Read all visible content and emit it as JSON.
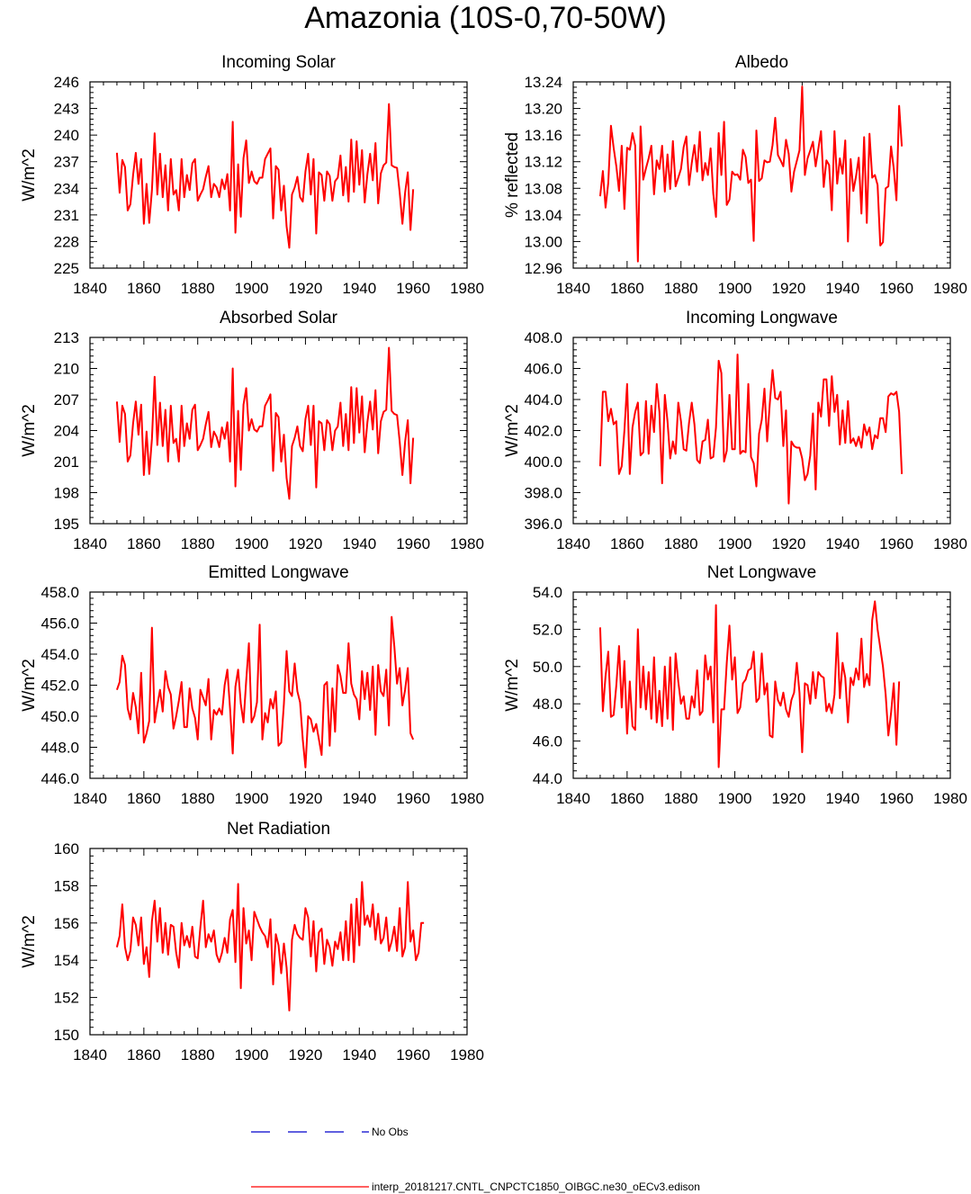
{
  "title": "Amazonia (10S-0,70-50W)",
  "chart_data": [
    {
      "type": "line",
      "title": "Incoming Solar",
      "ylabel": "W/m^2",
      "xlim": [
        1840,
        1980
      ],
      "ylim": [
        225,
        246
      ],
      "xticks": [
        1840,
        1860,
        1880,
        1900,
        1920,
        1940,
        1960,
        1980
      ],
      "xtick_labels": [
        "1840",
        "1860",
        "1880",
        "1900",
        "1920",
        "1940",
        "1960",
        "1980"
      ],
      "yticks": [
        225,
        228,
        231,
        234,
        237,
        240,
        243,
        246
      ],
      "ytick_labels": [
        "225",
        "228",
        "231",
        "234",
        "237",
        "240",
        "243",
        "246"
      ],
      "x_start": 1850,
      "values": [
        238.0,
        233.5,
        237.2,
        236.4,
        231.5,
        232.2,
        235.5,
        238.0,
        234.5,
        237.3,
        230.0,
        234.5,
        230.1,
        233.8,
        240.2,
        233.3,
        237.9,
        233.0,
        236.6,
        231.5,
        237.3,
        233.3,
        233.8,
        231.5,
        237.3,
        233.0,
        235.5,
        233.8,
        236.8,
        237.3,
        232.6,
        233.3,
        233.9,
        235.3,
        236.5,
        233.0,
        234.5,
        234.1,
        233.0,
        235.0,
        233.9,
        235.6,
        231.5,
        241.5,
        229.0,
        236.7,
        230.8,
        237.4,
        239.4,
        234.6,
        235.9,
        234.8,
        234.5,
        235.2,
        235.2,
        237.3,
        237.9,
        238.5,
        230.6,
        236.5,
        236.1,
        231.5,
        234.3,
        229.7,
        227.3,
        233.3,
        234.1,
        235.3,
        233.0,
        232.5,
        235.9,
        237.9,
        233.3,
        237.3,
        228.9,
        235.8,
        235.5,
        232.6,
        235.9,
        235.4,
        232.6,
        234.8,
        235.2,
        237.7,
        233.2,
        236.4,
        232.5,
        239.5,
        233.6,
        239.3,
        234.4,
        238.3,
        232.4,
        235.6,
        237.9,
        234.9,
        239.1,
        232.3,
        235.7,
        236.6,
        236.9,
        243.5,
        236.6,
        236.4,
        236.3,
        233.5,
        230.0,
        233.5,
        235.8,
        229.3,
        233.9
      ]
    },
    {
      "type": "line",
      "title": "Albedo",
      "ylabel": "% reflected",
      "xlim": [
        1840,
        1980
      ],
      "ylim": [
        12.96,
        13.24
      ],
      "xticks": [
        1840,
        1860,
        1880,
        1900,
        1920,
        1940,
        1960,
        1980
      ],
      "xtick_labels": [
        "1840",
        "1860",
        "1880",
        "1900",
        "1920",
        "1940",
        "1960",
        "1980"
      ],
      "yticks": [
        12.96,
        13.0,
        13.04,
        13.08,
        13.12,
        13.16,
        13.2,
        13.24
      ],
      "ytick_labels": [
        "12.96",
        "13.00",
        "13.04",
        "13.08",
        "13.12",
        "13.16",
        "13.20",
        "13.24"
      ],
      "x_start": 1850,
      "values": [
        13.068,
        13.106,
        13.051,
        13.088,
        13.174,
        13.141,
        13.113,
        13.076,
        13.144,
        13.049,
        13.141,
        13.138,
        13.163,
        13.144,
        12.97,
        13.173,
        13.093,
        13.11,
        13.125,
        13.144,
        13.071,
        13.122,
        13.109,
        13.144,
        13.075,
        13.131,
        13.079,
        13.151,
        13.083,
        13.096,
        13.109,
        13.142,
        13.158,
        13.085,
        13.118,
        13.145,
        13.105,
        13.165,
        13.092,
        13.118,
        13.1,
        13.14,
        13.072,
        13.037,
        13.163,
        13.1,
        13.18,
        13.055,
        13.063,
        13.105,
        13.1,
        13.101,
        13.093,
        13.138,
        13.127,
        13.088,
        13.093,
        13.001,
        13.167,
        13.091,
        13.095,
        13.122,
        13.119,
        13.12,
        13.145,
        13.186,
        13.13,
        13.122,
        13.113,
        13.153,
        13.132,
        13.075,
        13.105,
        13.121,
        13.137,
        13.233,
        13.1,
        13.125,
        13.137,
        13.15,
        13.113,
        13.139,
        13.166,
        13.082,
        13.122,
        13.115,
        13.047,
        13.166,
        13.087,
        13.125,
        13.102,
        13.152,
        13.0,
        13.124,
        13.076,
        13.098,
        13.126,
        13.042,
        13.157,
        13.028,
        13.162,
        13.096,
        13.1,
        13.085,
        12.994,
        12.999,
        13.08,
        13.083,
        13.143,
        13.11,
        13.062,
        13.204,
        13.143
      ]
    },
    {
      "type": "line",
      "title": "Absorbed Solar",
      "ylabel": "W/m^2",
      "xlim": [
        1840,
        1980
      ],
      "ylim": [
        195,
        213
      ],
      "xticks": [
        1840,
        1860,
        1880,
        1900,
        1920,
        1940,
        1960,
        1980
      ],
      "xtick_labels": [
        "1840",
        "1860",
        "1880",
        "1900",
        "1920",
        "1940",
        "1960",
        "1980"
      ],
      "yticks": [
        195,
        198,
        201,
        204,
        207,
        210,
        213
      ],
      "ytick_labels": [
        "195",
        "198",
        "201",
        "204",
        "207",
        "210",
        "213"
      ],
      "x_start": 1850,
      "values": [
        206.8,
        202.9,
        206.4,
        205.6,
        201.0,
        201.6,
        204.7,
        206.8,
        203.6,
        206.5,
        199.7,
        203.9,
        199.8,
        203.2,
        209.2,
        202.6,
        206.7,
        202.5,
        206.0,
        201.0,
        206.4,
        202.8,
        203.2,
        201.0,
        206.4,
        202.5,
        204.7,
        203.2,
        206.0,
        206.5,
        202.1,
        202.6,
        203.2,
        204.6,
        205.8,
        202.4,
        203.9,
        203.4,
        202.4,
        204.3,
        203.2,
        204.8,
        201.0,
        210.0,
        198.6,
        205.9,
        200.2,
        206.5,
        208.1,
        204.0,
        205.1,
        204.1,
        203.9,
        204.4,
        204.4,
        206.4,
        206.9,
        207.5,
        200.1,
        205.7,
        205.3,
        201.0,
        203.6,
        199.4,
        197.4,
        202.5,
        203.3,
        204.4,
        202.5,
        202.0,
        205.1,
        206.4,
        202.6,
        206.4,
        198.5,
        204.9,
        204.7,
        202.1,
        205.0,
        204.6,
        202.1,
        204.0,
        204.4,
        206.7,
        202.5,
        205.6,
        202.1,
        208.2,
        202.8,
        208.1,
        203.8,
        207.3,
        201.9,
        204.8,
        206.8,
        204.1,
        207.9,
        201.8,
        204.9,
        205.8,
        206.0,
        212.0,
        205.9,
        205.6,
        205.5,
        202.9,
        199.7,
        202.9,
        205.0,
        198.9,
        203.3
      ]
    },
    {
      "type": "line",
      "title": "Incoming Longwave",
      "ylabel": "W/m^2",
      "xlim": [
        1840,
        1980
      ],
      "ylim": [
        396,
        408
      ],
      "xticks": [
        1840,
        1860,
        1880,
        1900,
        1920,
        1940,
        1960,
        1980
      ],
      "xtick_labels": [
        "1840",
        "1860",
        "1880",
        "1900",
        "1920",
        "1940",
        "1960",
        "1980"
      ],
      "yticks": [
        396,
        398,
        400,
        402,
        404,
        406,
        408
      ],
      "ytick_labels": [
        "396.0",
        "398.0",
        "400.0",
        "402.0",
        "404.0",
        "406.0",
        "408.0"
      ],
      "x_start": 1850,
      "values": [
        399.7,
        404.5,
        404.5,
        402.6,
        403.4,
        402.4,
        402.6,
        399.2,
        399.7,
        402.0,
        405.0,
        399.2,
        402.2,
        403.2,
        403.8,
        400.4,
        400.6,
        403.9,
        400.5,
        403.6,
        401.9,
        405.0,
        403.2,
        398.6,
        404.3,
        402.6,
        400.2,
        401.3,
        400.5,
        403.8,
        402.6,
        400.8,
        400.7,
        402.5,
        403.8,
        402.4,
        400.1,
        399.9,
        401.3,
        401.4,
        402.7,
        400.2,
        400.3,
        402.2,
        406.5,
        405.7,
        400.0,
        400.7,
        404.3,
        400.8,
        400.8,
        406.9,
        400.5,
        400.7,
        400.6,
        405.0,
        400.3,
        399.9,
        398.4,
        401.8,
        402.7,
        404.7,
        401.3,
        403.8,
        405.9,
        404.1,
        404.0,
        404.5,
        401.0,
        403.3,
        397.3,
        401.3,
        401.0,
        400.9,
        400.9,
        400.2,
        398.8,
        399.2,
        400.4,
        403.1,
        398.2,
        403.8,
        402.9,
        405.3,
        405.3,
        402.3,
        405.5,
        403.2,
        404.3,
        401.1,
        403.3,
        401.2,
        403.9,
        401.2,
        401.5,
        401.0,
        401.6,
        400.9,
        402.4,
        401.7,
        402.2,
        400.8,
        401.7,
        401.5,
        402.8,
        402.8,
        401.9,
        404.2,
        404.4,
        404.3,
        404.5,
        403.2,
        399.2
      ]
    },
    {
      "type": "line",
      "title": "Emitted Longwave",
      "ylabel": "W/m^2",
      "xlim": [
        1840,
        1980
      ],
      "ylim": [
        446,
        458
      ],
      "xticks": [
        1840,
        1860,
        1880,
        1900,
        1920,
        1940,
        1960,
        1980
      ],
      "xtick_labels": [
        "1840",
        "1860",
        "1880",
        "1900",
        "1920",
        "1940",
        "1960",
        "1980"
      ],
      "yticks": [
        446,
        448,
        450,
        452,
        454,
        456,
        458
      ],
      "ytick_labels": [
        "446.0",
        "448.0",
        "450.0",
        "452.0",
        "454.0",
        "456.0",
        "458.0"
      ],
      "x_start": 1850,
      "values": [
        451.7,
        452.2,
        453.9,
        453.3,
        450.5,
        449.8,
        451.5,
        450.6,
        448.9,
        452.8,
        448.3,
        448.9,
        449.7,
        455.7,
        449.6,
        450.7,
        451.7,
        450.3,
        452.9,
        451.9,
        451.4,
        449.2,
        450.0,
        451.0,
        452.2,
        449.3,
        449.3,
        451.8,
        450.5,
        449.9,
        448.5,
        451.7,
        451.2,
        450.7,
        452.4,
        448.5,
        450.4,
        450.1,
        450.5,
        450.1,
        452.0,
        453.0,
        450.5,
        447.6,
        451.9,
        453.0,
        450.8,
        449.6,
        452.3,
        454.7,
        449.6,
        450.0,
        450.9,
        455.9,
        448.5,
        450.2,
        449.6,
        451.1,
        450.5,
        451.6,
        448.1,
        448.3,
        450.8,
        454.2,
        451.6,
        451.3,
        453.4,
        451.6,
        450.9,
        448.5,
        446.7,
        450.0,
        449.8,
        449.0,
        449.5,
        448.5,
        447.5,
        452.0,
        452.2,
        448.1,
        451.8,
        449.0,
        453.3,
        452.6,
        451.5,
        451.5,
        454.7,
        452.1,
        451.4,
        451.1,
        449.8,
        452.9,
        451.1,
        452.8,
        450.4,
        453.2,
        448.8,
        453.3,
        451.6,
        451.3,
        453.0,
        449.4,
        456.4,
        454.5,
        452.1,
        453.1,
        450.7,
        451.7,
        453.1,
        448.9,
        448.5
      ]
    },
    {
      "type": "line",
      "title": "Net Longwave",
      "ylabel": "W/m^2",
      "xlim": [
        1840,
        1980
      ],
      "ylim": [
        44,
        54
      ],
      "xticks": [
        1840,
        1860,
        1880,
        1900,
        1920,
        1940,
        1960,
        1980
      ],
      "xtick_labels": [
        "1840",
        "1860",
        "1880",
        "1900",
        "1920",
        "1940",
        "1960",
        "1980"
      ],
      "yticks": [
        44,
        46,
        48,
        50,
        52,
        54
      ],
      "ytick_labels": [
        "44.0",
        "46.0",
        "48.0",
        "50.0",
        "52.0",
        "54.0"
      ],
      "x_start": 1850,
      "values": [
        52.1,
        47.6,
        49.5,
        50.8,
        47.3,
        47.4,
        49.0,
        51.1,
        47.8,
        50.3,
        46.4,
        49.2,
        46.8,
        46.6,
        52.0,
        47.8,
        50.0,
        47.7,
        49.7,
        47.2,
        50.5,
        47.0,
        48.7,
        46.8,
        50.0,
        47.2,
        50.5,
        46.6,
        50.7,
        49.2,
        48.0,
        48.4,
        47.2,
        47.2,
        48.4,
        47.8,
        49.8,
        47.4,
        47.6,
        50.6,
        49.3,
        50.0,
        47.0,
        53.3,
        44.6,
        47.7,
        47.7,
        50.2,
        52.2,
        49.3,
        50.5,
        47.5,
        47.8,
        49.1,
        49.3,
        49.8,
        49.9,
        50.8,
        48.1,
        48.3,
        50.7,
        48.5,
        49.1,
        46.3,
        46.2,
        49.2,
        48.2,
        47.9,
        48.6,
        47.7,
        47.3,
        48.2,
        48.6,
        50.2,
        48.6,
        45.4,
        49.1,
        49.0,
        48.0,
        49.7,
        48.3,
        49.7,
        49.5,
        49.4,
        47.6,
        48.0,
        47.5,
        48.5,
        51.8,
        48.3,
        50.2,
        49.4,
        47.0,
        49.4,
        49.0,
        49.9,
        49.3,
        51.5,
        48.9,
        49.6,
        49.0,
        52.5,
        53.5,
        52.0,
        51.0,
        50.0,
        48.5,
        46.3,
        47.5,
        49.1,
        45.8,
        49.2
      ]
    },
    {
      "type": "line",
      "title": "Net Radiation",
      "ylabel": "W/m^2",
      "xlim": [
        1840,
        1980
      ],
      "ylim": [
        150,
        160
      ],
      "xticks": [
        1840,
        1860,
        1880,
        1900,
        1920,
        1940,
        1960,
        1980
      ],
      "xtick_labels": [
        "1840",
        "1860",
        "1880",
        "1900",
        "1920",
        "1940",
        "1960",
        "1980"
      ],
      "yticks": [
        150,
        152,
        154,
        156,
        158,
        160
      ],
      "ytick_labels": [
        "150",
        "152",
        "154",
        "156",
        "158",
        "160"
      ],
      "x_start": 1850,
      "values": [
        154.7,
        155.3,
        157.0,
        154.7,
        154.0,
        154.5,
        156.3,
        155.9,
        154.8,
        156.3,
        153.8,
        154.7,
        153.1,
        156.1,
        157.2,
        155.0,
        156.8,
        154.4,
        156.0,
        154.3,
        155.9,
        155.8,
        154.4,
        153.6,
        156.0,
        154.8,
        155.3,
        154.7,
        155.8,
        154.2,
        154.1,
        155.8,
        157.2,
        154.7,
        155.4,
        155.0,
        155.6,
        154.3,
        153.9,
        154.4,
        155.2,
        154.4,
        156.2,
        156.7,
        153.9,
        158.1,
        152.5,
        156.8,
        154.9,
        155.6,
        154.0,
        156.6,
        156.2,
        155.8,
        155.5,
        155.3,
        154.7,
        156.2,
        152.7,
        155.4,
        154.8,
        153.3,
        154.9,
        153.6,
        151.3,
        155.1,
        155.9,
        155.4,
        155.2,
        155.1,
        156.8,
        156.3,
        154.2,
        156.1,
        153.4,
        155.5,
        155.7,
        153.8,
        155.1,
        154.7,
        153.7,
        155.0,
        154.6,
        155.5,
        154.0,
        156.1,
        154.0,
        157.0,
        153.9,
        157.3,
        154.8,
        158.2,
        155.9,
        156.4,
        155.8,
        157.0,
        155.1,
        156.5,
        154.9,
        155.2,
        156.3,
        154.5,
        155.0,
        155.8,
        154.5,
        156.8,
        154.2,
        154.7,
        158.2,
        155.0,
        155.6,
        154.0,
        154.4,
        156.0,
        156.0
      ]
    }
  ],
  "legend": [
    {
      "label": "No Obs",
      "color": "#0000cc",
      "dash": "dashed"
    },
    {
      "label": "interp_20181217.CNTL_CNPCTC1850_OIBGC.ne30_oECv3.edison",
      "color": "#ff0000",
      "dash": "solid"
    }
  ],
  "line_color": "#ff0000"
}
